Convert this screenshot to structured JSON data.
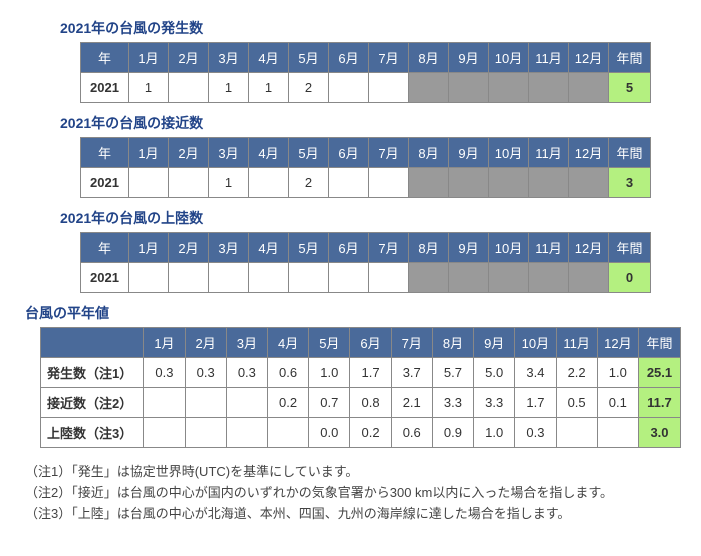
{
  "sections": [
    {
      "title": "2021年の台風の発生数",
      "year": "2021",
      "months": [
        "",
        "1",
        "",
        "1",
        "1",
        "2",
        "",
        "",
        "",
        "",
        "",
        "",
        ""
      ],
      "grey_from": 8,
      "total": "5"
    },
    {
      "title": "2021年の台風の接近数",
      "year": "2021",
      "months": [
        "",
        "",
        "",
        "1",
        "",
        "2",
        "",
        "",
        "",
        "",
        "",
        "",
        ""
      ],
      "grey_from": 8,
      "total": "3"
    },
    {
      "title": "2021年の台風の上陸数",
      "year": "2021",
      "months": [
        "",
        "",
        "",
        "",
        "",
        "",
        "",
        "",
        "",
        "",
        "",
        "",
        ""
      ],
      "grey_from": 8,
      "total": "0"
    }
  ],
  "header_months": [
    "1月",
    "2月",
    "3月",
    "4月",
    "5月",
    "6月",
    "7月",
    "8月",
    "9月",
    "10月",
    "11月",
    "12月"
  ],
  "header_year": "年",
  "header_total": "年間",
  "avg_title": "台風の平年値",
  "avg_rows": [
    {
      "label": "発生数（注1）",
      "vals": [
        "0.3",
        "0.3",
        "0.3",
        "0.6",
        "1.0",
        "1.7",
        "3.7",
        "5.7",
        "5.0",
        "3.4",
        "2.2",
        "1.0"
      ],
      "total": "25.1"
    },
    {
      "label": "接近数（注2）",
      "vals": [
        "",
        "",
        "",
        "0.2",
        "0.7",
        "0.8",
        "2.1",
        "3.3",
        "3.3",
        "1.7",
        "0.5",
        "0.1"
      ],
      "total": "11.7"
    },
    {
      "label": "上陸数（注3）",
      "vals": [
        "",
        "",
        "",
        "",
        "0.0",
        "0.2",
        "0.6",
        "0.9",
        "1.0",
        "0.3",
        "",
        ""
      ],
      "total": "3.0"
    }
  ],
  "notes": [
    "（注1）「発生」は協定世界時(UTC)を基準にしています。",
    "（注2）「接近」は台風の中心が国内のいずれかの気象官署から300 km以内に入った場合を指します。",
    "（注3）「上陸」は台風の中心が北海道、本州、四国、九州の海岸線に達した場合を指します。"
  ],
  "colors": {
    "header_bg": "#4a6a9a",
    "green": "#b4f080",
    "grey": "#9a9a9a",
    "title": "#224488"
  }
}
